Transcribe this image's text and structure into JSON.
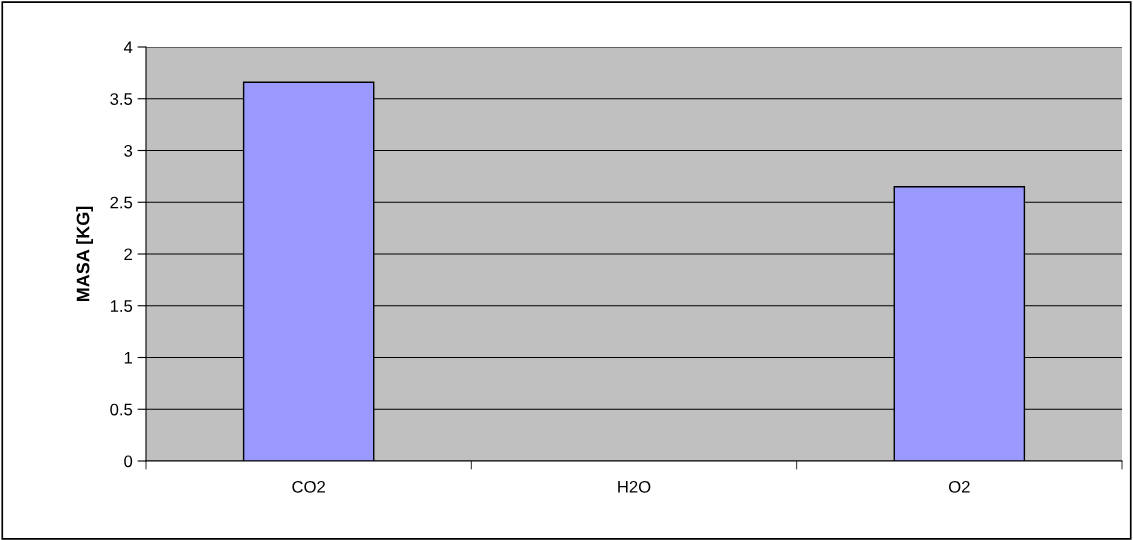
{
  "chart_data": {
    "type": "bar",
    "ylabel": "MASA [KG]",
    "categories": [
      "CO2",
      "H2O",
      "O2"
    ],
    "values": [
      3.66,
      null,
      2.65
    ],
    "color": "#9999ff",
    "ylim": [
      0,
      4
    ],
    "yticks": [
      0,
      0.5,
      1,
      1.5,
      2,
      2.5,
      3,
      3.5,
      4
    ],
    "grid": "y",
    "legend": false
  }
}
